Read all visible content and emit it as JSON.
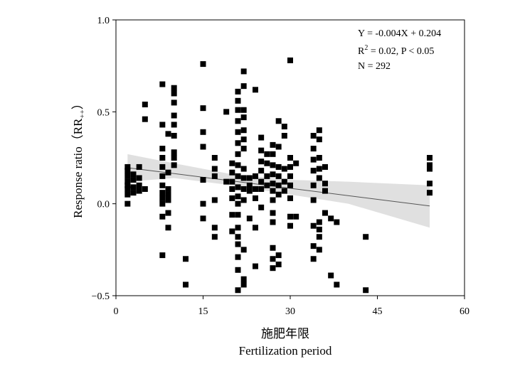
{
  "chart_data": {
    "type": "scatter",
    "title": "",
    "xlabel_cn": "施肥年限",
    "xlabel": "Fertilization period",
    "ylabel": "Response ratio（RR",
    "ylabel_sub": "++",
    "ylabel_close": "）",
    "xlim": [
      0,
      60
    ],
    "ylim": [
      -0.5,
      1.0
    ],
    "xticks": [
      "0",
      "15",
      "30",
      "45",
      "60"
    ],
    "yticks": [
      "−0.5",
      "0.0",
      "0.5",
      "1.0"
    ],
    "xtick_values": [
      0,
      15,
      30,
      45,
      60
    ],
    "ytick_values": [
      -0.5,
      0.0,
      0.5,
      1.0
    ],
    "grid": false,
    "annotation": {
      "equation": "Y = -0.004X + 0.204",
      "r2_prefix": "R",
      "r2_sup": "2",
      "r2_rest": " = 0.02, P < 0.05",
      "n": "N = 292"
    },
    "regression": {
      "slope": -0.004,
      "intercept": 0.204,
      "x_range": [
        2,
        54
      ]
    },
    "confidence_band": {
      "x": [
        2,
        10,
        20,
        30,
        40,
        54
      ],
      "lower": [
        0.12,
        0.14,
        0.1,
        0.05,
        0.0,
        -0.13
      ],
      "upper": [
        0.27,
        0.22,
        0.16,
        0.13,
        0.12,
        0.1
      ]
    },
    "colors": {
      "points": "#000000",
      "band": "#e0e0e0",
      "line": "#555555"
    },
    "points": [
      [
        2,
        0.0
      ],
      [
        2,
        0.05
      ],
      [
        2,
        0.08
      ],
      [
        2,
        0.1
      ],
      [
        2,
        0.12
      ],
      [
        2,
        0.15
      ],
      [
        2,
        0.18
      ],
      [
        2,
        0.2
      ],
      [
        3,
        0.06
      ],
      [
        3,
        0.09
      ],
      [
        3,
        0.13
      ],
      [
        3,
        0.16
      ],
      [
        4,
        0.07
      ],
      [
        4,
        0.1
      ],
      [
        4,
        0.14
      ],
      [
        4,
        0.2
      ],
      [
        5,
        0.08
      ],
      [
        5,
        0.46
      ],
      [
        5,
        0.54
      ],
      [
        8,
        -0.28
      ],
      [
        8,
        -0.07
      ],
      [
        8,
        0.0
      ],
      [
        8,
        0.03
      ],
      [
        8,
        0.06
      ],
      [
        8,
        0.1
      ],
      [
        8,
        0.15
      ],
      [
        8,
        0.2
      ],
      [
        8,
        0.25
      ],
      [
        8,
        0.3
      ],
      [
        8,
        0.43
      ],
      [
        8,
        0.65
      ],
      [
        9,
        -0.13
      ],
      [
        9,
        -0.05
      ],
      [
        9,
        0.02
      ],
      [
        9,
        0.05
      ],
      [
        9,
        0.08
      ],
      [
        9,
        0.17
      ],
      [
        9,
        0.38
      ],
      [
        10,
        0.21
      ],
      [
        10,
        0.25
      ],
      [
        10,
        0.28
      ],
      [
        10,
        0.37
      ],
      [
        10,
        0.43
      ],
      [
        10,
        0.48
      ],
      [
        10,
        0.55
      ],
      [
        10,
        0.6
      ],
      [
        10,
        0.63
      ],
      [
        12,
        -0.44
      ],
      [
        12,
        -0.3
      ],
      [
        15,
        -0.08
      ],
      [
        15,
        0.0
      ],
      [
        15,
        0.13
      ],
      [
        15,
        0.31
      ],
      [
        15,
        0.39
      ],
      [
        15,
        0.52
      ],
      [
        15,
        0.76
      ],
      [
        17,
        -0.18
      ],
      [
        17,
        -0.13
      ],
      [
        17,
        0.02
      ],
      [
        17,
        0.15
      ],
      [
        17,
        0.19
      ],
      [
        17,
        0.25
      ],
      [
        19,
        0.12
      ],
      [
        19,
        0.5
      ],
      [
        20,
        -0.15
      ],
      [
        20,
        -0.06
      ],
      [
        20,
        0.03
      ],
      [
        20,
        0.08
      ],
      [
        20,
        0.12
      ],
      [
        20,
        0.17
      ],
      [
        20,
        0.22
      ],
      [
        21,
        -0.47
      ],
      [
        21,
        -0.36
      ],
      [
        21,
        -0.29
      ],
      [
        21,
        -0.22
      ],
      [
        21,
        -0.18
      ],
      [
        21,
        -0.13
      ],
      [
        21,
        -0.06
      ],
      [
        21,
        0.0
      ],
      [
        21,
        0.04
      ],
      [
        21,
        0.09
      ],
      [
        21,
        0.15
      ],
      [
        21,
        0.21
      ],
      [
        21,
        0.27
      ],
      [
        21,
        0.33
      ],
      [
        21,
        0.39
      ],
      [
        21,
        0.45
      ],
      [
        21,
        0.51
      ],
      [
        21,
        0.56
      ],
      [
        21,
        0.61
      ],
      [
        22,
        -0.44
      ],
      [
        22,
        -0.41
      ],
      [
        22,
        -0.25
      ],
      [
        22,
        0.02
      ],
      [
        22,
        0.08
      ],
      [
        22,
        0.14
      ],
      [
        22,
        0.19
      ],
      [
        22,
        0.3
      ],
      [
        22,
        0.35
      ],
      [
        22,
        0.4
      ],
      [
        22,
        0.47
      ],
      [
        22,
        0.51
      ],
      [
        22,
        0.64
      ],
      [
        22,
        0.72
      ],
      [
        23,
        -0.08
      ],
      [
        23,
        0.07
      ],
      [
        23,
        0.1
      ],
      [
        23,
        0.14
      ],
      [
        24,
        -0.34
      ],
      [
        24,
        -0.13
      ],
      [
        24,
        0.03
      ],
      [
        24,
        0.08
      ],
      [
        24,
        0.15
      ],
      [
        24,
        0.62
      ],
      [
        25,
        -0.02
      ],
      [
        25,
        0.08
      ],
      [
        25,
        0.12
      ],
      [
        25,
        0.18
      ],
      [
        25,
        0.23
      ],
      [
        25,
        0.29
      ],
      [
        25,
        0.36
      ],
      [
        26,
        0.1
      ],
      [
        26,
        0.15
      ],
      [
        26,
        0.22
      ],
      [
        26,
        0.27
      ],
      [
        27,
        -0.35
      ],
      [
        27,
        -0.3
      ],
      [
        27,
        -0.24
      ],
      [
        27,
        -0.1
      ],
      [
        27,
        -0.05
      ],
      [
        27,
        0.02
      ],
      [
        27,
        0.07
      ],
      [
        27,
        0.11
      ],
      [
        27,
        0.16
      ],
      [
        27,
        0.21
      ],
      [
        27,
        0.27
      ],
      [
        27,
        0.32
      ],
      [
        28,
        -0.33
      ],
      [
        28,
        -0.28
      ],
      [
        28,
        0.05
      ],
      [
        28,
        0.1
      ],
      [
        28,
        0.15
      ],
      [
        28,
        0.2
      ],
      [
        28,
        0.31
      ],
      [
        28,
        0.45
      ],
      [
        29,
        0.07
      ],
      [
        29,
        0.12
      ],
      [
        29,
        0.19
      ],
      [
        29,
        0.37
      ],
      [
        29,
        0.42
      ],
      [
        30,
        -0.12
      ],
      [
        30,
        -0.07
      ],
      [
        30,
        0.03
      ],
      [
        30,
        0.1
      ],
      [
        30,
        0.15
      ],
      [
        30,
        0.2
      ],
      [
        30,
        0.25
      ],
      [
        30,
        0.78
      ],
      [
        31,
        -0.07
      ],
      [
        31,
        0.22
      ],
      [
        34,
        -0.3
      ],
      [
        34,
        -0.23
      ],
      [
        34,
        -0.12
      ],
      [
        34,
        0.02
      ],
      [
        34,
        0.1
      ],
      [
        34,
        0.18
      ],
      [
        34,
        0.24
      ],
      [
        34,
        0.3
      ],
      [
        34,
        0.37
      ],
      [
        35,
        -0.25
      ],
      [
        35,
        -0.18
      ],
      [
        35,
        -0.14
      ],
      [
        35,
        -0.1
      ],
      [
        35,
        0.14
      ],
      [
        35,
        0.19
      ],
      [
        35,
        0.25
      ],
      [
        35,
        0.35
      ],
      [
        35,
        0.4
      ],
      [
        36,
        -0.05
      ],
      [
        36,
        0.07
      ],
      [
        36,
        0.11
      ],
      [
        36,
        0.2
      ],
      [
        37,
        -0.39
      ],
      [
        37,
        -0.08
      ],
      [
        38,
        -0.44
      ],
      [
        38,
        -0.1
      ],
      [
        43,
        -0.47
      ],
      [
        43,
        -0.18
      ],
      [
        54,
        0.06
      ],
      [
        54,
        0.11
      ],
      [
        54,
        0.19
      ],
      [
        54,
        0.21
      ],
      [
        54,
        0.25
      ]
    ]
  }
}
